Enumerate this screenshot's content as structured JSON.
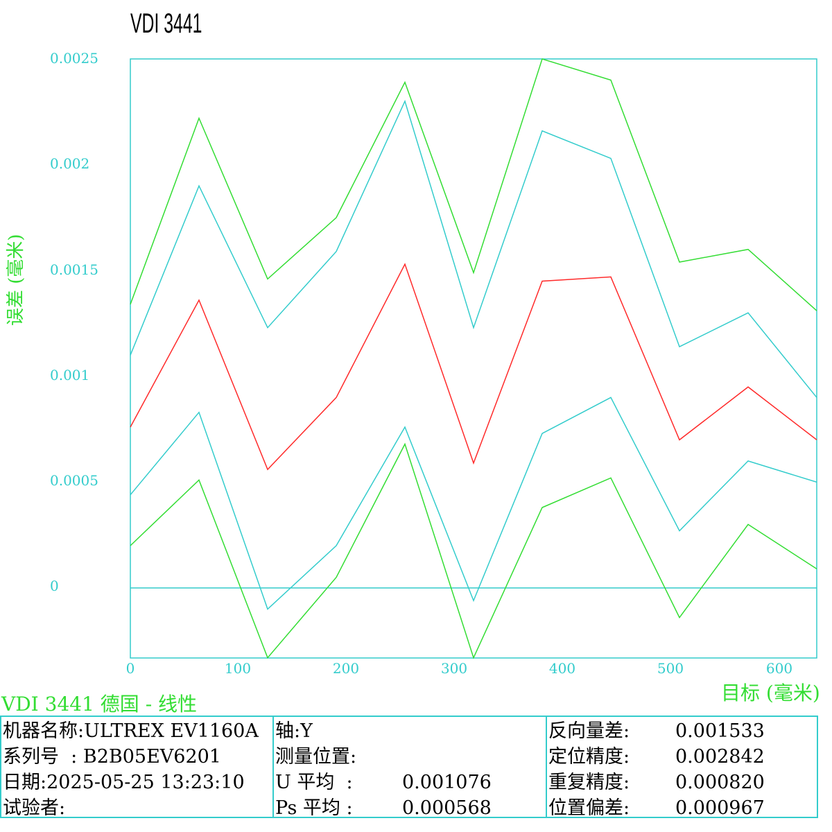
{
  "title": "VDI 3441",
  "subtitle": "VDI 3441 德国 - 线性",
  "colors": {
    "axis": "#33cccc",
    "green": "#33dd33",
    "cyan": "#33cccc",
    "red": "#ff2a2a"
  },
  "chart_data": {
    "type": "line",
    "title": "VDI 3441",
    "xlabel": "目标 (毫米)",
    "ylabel": "误差 (毫米)",
    "xlim": [
      0,
      635
    ],
    "ylim": [
      -0.00033,
      0.0025
    ],
    "xticks": [
      "0",
      "100",
      "200",
      "300",
      "400",
      "500",
      "600"
    ],
    "yticks": [
      "0.0025",
      "0.002",
      "0.0015",
      "0.001",
      "0.0005",
      "0"
    ],
    "grid": false,
    "x": [
      0,
      63.5,
      127,
      190.5,
      254,
      317.5,
      381,
      444.5,
      508,
      571.5,
      635
    ],
    "series": [
      {
        "color": "green",
        "values": [
          0.00134,
          0.00222,
          0.00146,
          0.00175,
          0.00239,
          0.00149,
          0.0025,
          0.0024,
          0.00154,
          0.0016,
          0.00131
        ]
      },
      {
        "color": "cyan",
        "values": [
          0.0011,
          0.0019,
          0.00123,
          0.00159,
          0.0023,
          0.00123,
          0.00216,
          0.00203,
          0.00114,
          0.0013,
          0.0009
        ]
      },
      {
        "color": "red",
        "values": [
          0.00076,
          0.00136,
          0.00056,
          0.0009,
          0.00153,
          0.00059,
          0.00145,
          0.00147,
          0.0007,
          0.00095,
          0.0007
        ]
      },
      {
        "color": "cyan",
        "values": [
          0.00044,
          0.00083,
          -0.0001,
          0.0002,
          0.00076,
          -6e-05,
          0.00073,
          0.0009,
          0.00027,
          0.0006,
          0.0005
        ]
      },
      {
        "color": "green",
        "values": [
          0.0002,
          0.00051,
          -0.00033,
          5e-05,
          0.00068,
          -0.00033,
          0.00038,
          0.00052,
          -0.00014,
          0.0003,
          9e-05
        ]
      }
    ]
  },
  "info": {
    "col1": [
      {
        "label": "机器名称:",
        "value": "ULTREX EV1160A"
      },
      {
        "label": "系列号  :",
        "value": " B2B05EV6201"
      },
      {
        "label": "日期:",
        "value": "2025-05-25 13:23:10"
      },
      {
        "label": "试验者:",
        "value": ""
      }
    ],
    "col2": [
      {
        "label": "轴:",
        "value": "Y"
      },
      {
        "label": "测量位置:",
        "value": ""
      },
      {
        "label": "U 平均  :",
        "value": "0.001076"
      },
      {
        "label": "Ps 平均 :",
        "value": "0.000568"
      }
    ],
    "col3": [
      {
        "label": "反向量差:",
        "value": "0.001533"
      },
      {
        "label": "定位精度:",
        "value": "0.002842"
      },
      {
        "label": "重复精度:",
        "value": "0.000820"
      },
      {
        "label": "位置偏差:",
        "value": "0.000967"
      }
    ]
  }
}
